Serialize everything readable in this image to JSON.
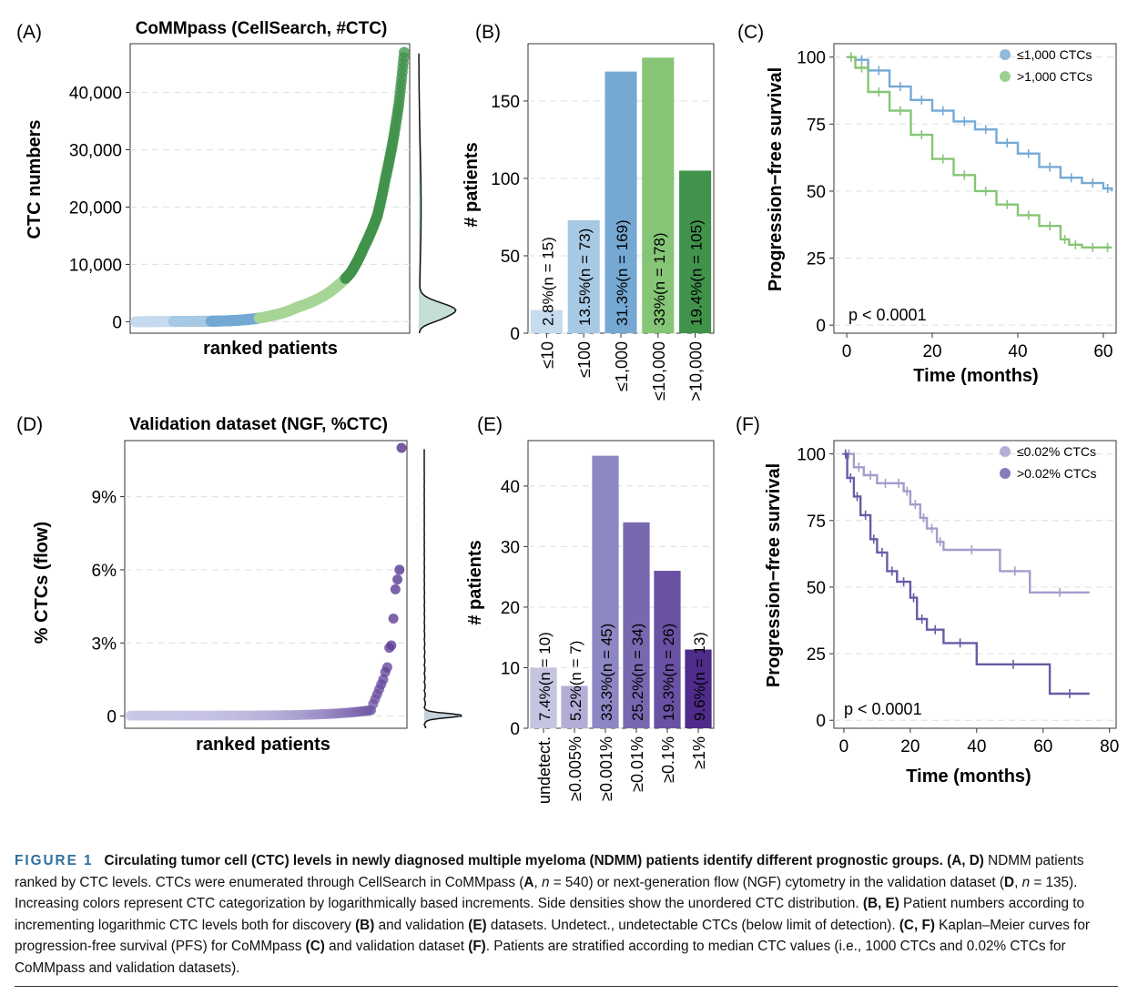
{
  "panels": {
    "A": {
      "label": "(A)",
      "title": "CoMMpass (CellSearch, #CTC)",
      "ylabel": "CTC numbers",
      "xlabel": "ranked patients"
    },
    "B": {
      "label": "(B)",
      "ylabel": "# patients"
    },
    "C": {
      "label": "(C)",
      "ylabel": "Progression−free survival",
      "xlabel": "Time (months)",
      "pvalue": "p < 0.0001"
    },
    "D": {
      "label": "(D)",
      "title": "Validation dataset (NGF, %CTC)",
      "ylabel": "% CTCs (flow)",
      "xlabel": "ranked patients"
    },
    "E": {
      "label": "(E)",
      "ylabel": "# patients"
    },
    "F": {
      "label": "(F)",
      "ylabel": "Progression−free survival",
      "xlabel": "Time (months)",
      "pvalue": "p < 0.0001"
    }
  },
  "colors": {
    "blue_light": "#c6dbee",
    "blue_mid": "#a8c9e4",
    "blue": "#75a9d4",
    "green_light": "#a6d596",
    "green": "#86c576",
    "green_dark": "#41924b",
    "purple_1": "#c5c4e1",
    "purple_2": "#b2aed6",
    "purple_3": "#8d87c3",
    "purple_4": "#7868b0",
    "purple_5": "#6a51a3",
    "purple_6": "#4f2c8c",
    "grid": "#e3e3e3"
  },
  "chart_data": [
    {
      "panel": "A",
      "type": "scatter",
      "title": "CoMMpass (CellSearch, #CTC)",
      "xlabel": "ranked patients",
      "ylabel": "CTC numbers",
      "ylim": [
        -2000,
        48500
      ],
      "yticks": [
        0,
        10000,
        20000,
        30000,
        40000
      ],
      "ytick_labels": [
        "0",
        "10,000",
        "20,000",
        "30,000",
        "40,000"
      ],
      "n": 540,
      "curve": [
        [
          0,
          0
        ],
        [
          0.3,
          100
        ],
        [
          0.5,
          1000
        ],
        [
          0.6,
          2500
        ],
        [
          0.7,
          4500
        ],
        [
          0.8,
          8500
        ],
        [
          0.85,
          13000
        ],
        [
          0.9,
          18500
        ],
        [
          0.93,
          25000
        ],
        [
          0.96,
          32000
        ],
        [
          0.98,
          38000
        ],
        [
          1.0,
          47000
        ]
      ],
      "categories_colors": [
        "#c6dbee",
        "#a8c9e4",
        "#75a9d4",
        "#a6d596",
        "#41924b"
      ],
      "side_density": true
    },
    {
      "panel": "B",
      "type": "bar",
      "ylabel": "# patients",
      "categories": [
        "≤10",
        "≤100",
        "≤1,000",
        "≤10,000",
        ">10,000"
      ],
      "values": [
        15,
        73,
        169,
        178,
        105
      ],
      "bar_labels": [
        "2.8%(n = 15)",
        "13.5%(n = 73)",
        "31.3%(n = 169)",
        "33%(n = 178)",
        "19.4%(n = 105)"
      ],
      "colors": [
        "#c6dbee",
        "#a8c9e4",
        "#75a9d4",
        "#86c576",
        "#41924b"
      ],
      "ylim": [
        0,
        187
      ],
      "yticks": [
        0,
        50,
        100,
        150
      ]
    },
    {
      "panel": "C",
      "type": "line",
      "xlabel": "Time (months)",
      "ylabel": "Progression−free survival",
      "xlim": [
        -3,
        63
      ],
      "ylim": [
        -3,
        105
      ],
      "xticks": [
        0,
        20,
        40,
        60
      ],
      "yticks": [
        0,
        25,
        50,
        75,
        100
      ],
      "legend_position": "top-right",
      "pvalue": "p < 0.0001",
      "series": [
        {
          "name": "≤1,000 CTCs",
          "color": "#75a9d4",
          "x": [
            0,
            2,
            5,
            10,
            15,
            20,
            25,
            30,
            35,
            40,
            45,
            50,
            55,
            60,
            62
          ],
          "y": [
            100,
            99,
            95,
            89,
            84,
            80,
            76,
            73,
            68,
            64,
            59,
            55,
            53,
            51,
            50
          ]
        },
        {
          "name": ">1,000 CTCs",
          "color": "#86c576",
          "x": [
            0,
            2,
            5,
            10,
            15,
            20,
            25,
            30,
            35,
            40,
            45,
            50,
            52,
            55,
            60,
            62
          ],
          "y": [
            100,
            96,
            87,
            80,
            71,
            62,
            56,
            50,
            45,
            41,
            37,
            32,
            30,
            29,
            29,
            29
          ]
        }
      ]
    },
    {
      "panel": "D",
      "type": "scatter",
      "title": "Validation dataset (NGF, %CTC)",
      "xlabel": "ranked patients",
      "ylabel": "% CTCs (flow)",
      "ylim": [
        -0.5,
        11.3
      ],
      "yticks": [
        0,
        3,
        6,
        9
      ],
      "ytick_labels": [
        "0",
        "3%",
        "6%",
        "9%"
      ],
      "n": 135,
      "top_values": [
        11,
        6,
        5.6,
        5.2,
        4,
        2.9,
        2.8,
        2,
        1.8,
        1.5,
        1.3,
        1.1,
        0.9,
        0.7,
        0.5
      ],
      "side_density": true
    },
    {
      "panel": "E",
      "type": "bar",
      "ylabel": "# patients",
      "categories": [
        "undetect.",
        "≥0.005%",
        "≥0.001%",
        "≥0.01%",
        "≥0.1%",
        "≥1%"
      ],
      "values": [
        10,
        7,
        45,
        34,
        26,
        13
      ],
      "bar_labels": [
        "7.4%(n = 10)",
        "5.2%(n = 7)",
        "33.3%(n = 45)",
        "25.2%(n = 34)",
        "19.3%(n = 26)",
        "9.6%(n = 13)"
      ],
      "colors": [
        "#c5c4e1",
        "#b2aed6",
        "#8d87c3",
        "#7868b0",
        "#6a51a3",
        "#4f2c8c"
      ],
      "ylim": [
        0,
        47.5
      ],
      "yticks": [
        0,
        10,
        20,
        30,
        40
      ]
    },
    {
      "panel": "F",
      "type": "line",
      "xlabel": "Time (months)",
      "ylabel": "Progression−free survival",
      "xlim": [
        -3,
        82
      ],
      "ylim": [
        -3,
        105
      ],
      "xticks": [
        0,
        20,
        40,
        60,
        80
      ],
      "yticks": [
        0,
        25,
        50,
        75,
        100
      ],
      "legend_position": "top-right",
      "pvalue": "p < 0.0001",
      "series": [
        {
          "name": "≤0.02% CTCs",
          "color": "#a39dcc",
          "x": [
            0,
            3,
            6,
            10,
            15,
            18,
            20,
            23,
            25,
            28,
            30,
            47,
            56,
            74
          ],
          "y": [
            100,
            95,
            92,
            89,
            89,
            86,
            81,
            76,
            72,
            67,
            64,
            56,
            48,
            48
          ]
        },
        {
          "name": ">0.02% CTCs",
          "color": "#6a5ba6",
          "x": [
            0,
            1,
            3,
            5,
            8,
            10,
            13,
            16,
            20,
            22,
            25,
            30,
            40,
            62,
            74
          ],
          "y": [
            100,
            91,
            84,
            77,
            68,
            63,
            56,
            52,
            46,
            38,
            34,
            29,
            21,
            10,
            10
          ]
        }
      ]
    }
  ],
  "caption": {
    "label": "FIGURE 1",
    "title": "Circulating tumor cell (CTC) levels in newly diagnosed multiple myeloma (NDMM) patients identify different prognostic groups.",
    "parts": [
      {
        "text": " "
      },
      {
        "text": "(A, D)",
        "bold": true
      },
      {
        "text": " NDMM patients ranked by CTC levels. CTCs were enumerated through CellSearch in CoMMpass ("
      },
      {
        "text": "A",
        "bold": true
      },
      {
        "text": ", "
      },
      {
        "text": "n",
        "italic": true
      },
      {
        "text": " = 540) or next-generation flow (NGF) cytometry in the validation dataset ("
      },
      {
        "text": "D",
        "bold": true
      },
      {
        "text": ", "
      },
      {
        "text": "n",
        "italic": true
      },
      {
        "text": " = 135). Increasing colors represent CTC categorization by logarithmically based increments. Side densities show the unordered CTC distribution. "
      },
      {
        "text": "(B, E)",
        "bold": true
      },
      {
        "text": " Patient numbers according to incrementing logarithmic CTC levels both for discovery "
      },
      {
        "text": "(B)",
        "bold": true
      },
      {
        "text": " and validation "
      },
      {
        "text": "(E)",
        "bold": true
      },
      {
        "text": " datasets. Undetect., undetectable CTCs (below limit of detection). "
      },
      {
        "text": "(C, F)",
        "bold": true
      },
      {
        "text": " Kaplan–Meier curves for progression-free survival (PFS) for CoMMpass "
      },
      {
        "text": "(C)",
        "bold": true
      },
      {
        "text": " and validation dataset "
      },
      {
        "text": "(F)",
        "bold": true
      },
      {
        "text": ". Patients are stratified according to median CTC values (i.e., 1000 CTCs and 0.02% CTCs for CoMMpass and validation datasets)."
      }
    ]
  }
}
